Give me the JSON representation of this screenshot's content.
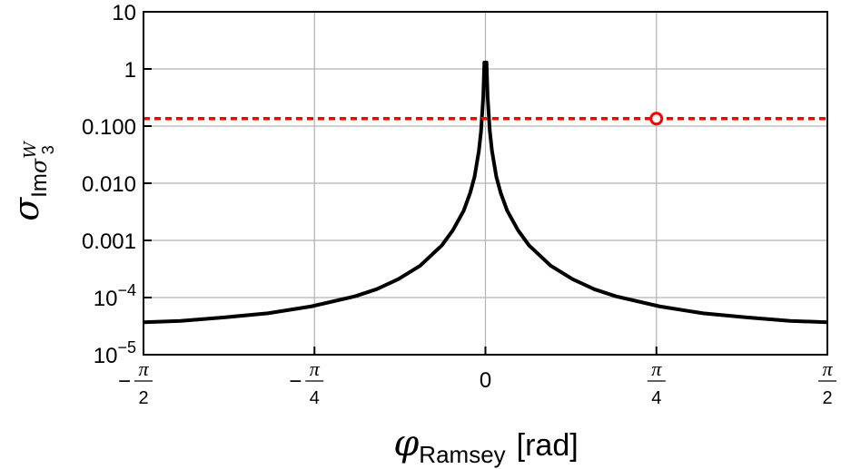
{
  "chart_data": {
    "type": "line",
    "title": "",
    "xlabel": {
      "symbol": "φ",
      "subscript": "Ramsey",
      "unit": "[rad]"
    },
    "ylabel": {
      "symbol": "σ",
      "subscript": "Im",
      "sub_symbol": "σ",
      "sub_sup": "W",
      "sub_sub": "3"
    },
    "xlim": [
      -1.5708,
      1.5708
    ],
    "ylim": [
      1e-05,
      10
    ],
    "yscale": "log",
    "grid": true,
    "x_ticks": [
      {
        "value": -1.5708,
        "sign": "−",
        "num": "π",
        "den": "2"
      },
      {
        "value": -0.7854,
        "sign": "−",
        "num": "π",
        "den": "4"
      },
      {
        "value": 0,
        "sign": "",
        "num": "0",
        "den": ""
      },
      {
        "value": 0.7854,
        "sign": "",
        "num": "π",
        "den": "4"
      },
      {
        "value": 1.5708,
        "sign": "",
        "num": "π",
        "den": "2"
      }
    ],
    "y_ticks": [
      {
        "value": 1e-05,
        "mant": "10",
        "exp": "−5"
      },
      {
        "value": 0.0001,
        "mant": "10",
        "exp": "−4"
      },
      {
        "value": 0.001,
        "mant": "0.001",
        "exp": ""
      },
      {
        "value": 0.01,
        "mant": "0.010",
        "exp": ""
      },
      {
        "value": 0.1,
        "mant": "0.100",
        "exp": ""
      },
      {
        "value": 1,
        "mant": "1",
        "exp": ""
      },
      {
        "value": 10,
        "mant": "10",
        "exp": ""
      }
    ],
    "series": [
      {
        "style": "solid",
        "color": "#000000",
        "x": [
          -1.5708,
          -1.4,
          -1.2,
          -1.0,
          -0.8,
          -0.6,
          -0.5,
          -0.4,
          -0.3,
          -0.2,
          -0.15,
          -0.1,
          -0.07,
          -0.05,
          -0.03,
          -0.02,
          -0.01,
          -0.005,
          0.005,
          0.01,
          0.02,
          0.03,
          0.05,
          0.07,
          0.1,
          0.15,
          0.2,
          0.3,
          0.4,
          0.5,
          0.6,
          0.8,
          1.0,
          1.2,
          1.4,
          1.5708
        ],
        "y": [
          3.7e-05,
          3.9e-05,
          4.5e-05,
          5.3e-05,
          7e-05,
          0.000105,
          0.00014,
          0.00021,
          0.00036,
          0.00082,
          0.0015,
          0.0033,
          0.0068,
          0.013,
          0.037,
          0.083,
          0.33,
          1.3,
          1.3,
          0.33,
          0.083,
          0.037,
          0.013,
          0.0068,
          0.0033,
          0.0015,
          0.00082,
          0.00036,
          0.00021,
          0.00014,
          0.000105,
          7e-05,
          5.3e-05,
          4.5e-05,
          3.9e-05,
          3.7e-05
        ]
      },
      {
        "style": "dotted",
        "color": "#ff0000",
        "x": [
          -1.5708,
          1.5708
        ],
        "y": [
          0.135,
          0.135
        ]
      }
    ],
    "points": [
      {
        "x": 0.7854,
        "y": 0.135,
        "color": "#ff0000",
        "marker": "open-circle"
      }
    ]
  }
}
